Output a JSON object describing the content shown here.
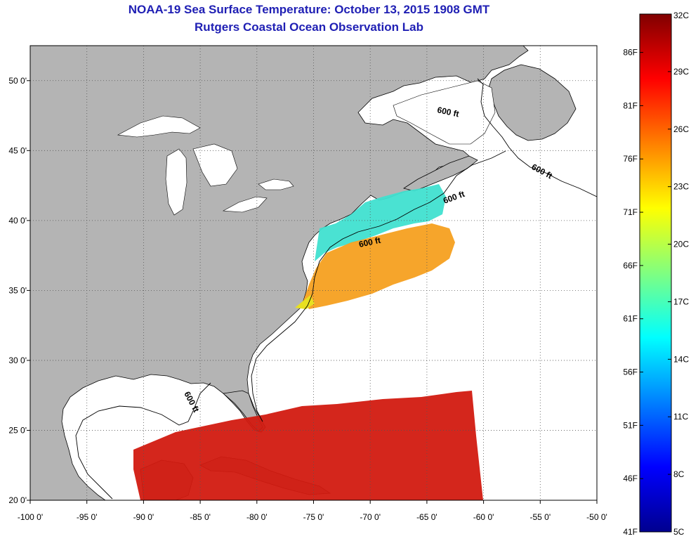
{
  "header": {
    "title": "NOAA-19 Sea Surface Temperature:  October 13, 2015 1908 GMT",
    "subtitle": "Rutgers Coastal Ocean Observation Lab"
  },
  "map": {
    "lon_range": [
      -100,
      -50
    ],
    "lat_range": [
      20,
      52.5
    ],
    "lon_ticks": [
      {
        "v": -100,
        "label": "-100 0'"
      },
      {
        "v": -95,
        "label": "-95 0'"
      },
      {
        "v": -90,
        "label": "-90 0'"
      },
      {
        "v": -85,
        "label": "-85 0'"
      },
      {
        "v": -80,
        "label": "-80 0'"
      },
      {
        "v": -75,
        "label": "-75 0'"
      },
      {
        "v": -70,
        "label": "-70 0'"
      },
      {
        "v": -65,
        "label": "-65 0'"
      },
      {
        "v": -60,
        "label": "-60 0'"
      },
      {
        "v": -55,
        "label": "-55 0'"
      },
      {
        "v": -50,
        "label": "-50 0'"
      }
    ],
    "lat_ticks": [
      {
        "v": 20,
        "label": "20 0'"
      },
      {
        "v": 25,
        "label": "25 0'"
      },
      {
        "v": 30,
        "label": "30 0'"
      },
      {
        "v": 35,
        "label": "35 0'"
      },
      {
        "v": 40,
        "label": "40 0'"
      },
      {
        "v": 45,
        "label": "45 0'"
      },
      {
        "v": 50,
        "label": "50 0'"
      }
    ],
    "contour_label": "600 ft",
    "colors": {
      "land": "#b4b4b4",
      "ocean": "#ffffff",
      "grid": "#555555"
    }
  },
  "colorbar": {
    "min_c": 5,
    "max_c": 32,
    "celsius_ticks": [
      {
        "v": 32,
        "label": "32C"
      },
      {
        "v": 29,
        "label": "29C"
      },
      {
        "v": 26,
        "label": "26C"
      },
      {
        "v": 23,
        "label": "23C"
      },
      {
        "v": 20,
        "label": "20C"
      },
      {
        "v": 17,
        "label": "17C"
      },
      {
        "v": 14,
        "label": "14C"
      },
      {
        "v": 11,
        "label": "11C"
      },
      {
        "v": 8,
        "label": "8C"
      },
      {
        "v": 5,
        "label": "5C"
      }
    ],
    "fahrenheit_ticks": [
      {
        "v": 86,
        "label": "86F"
      },
      {
        "v": 81,
        "label": "81F"
      },
      {
        "v": 76,
        "label": "76F"
      },
      {
        "v": 71,
        "label": "71F"
      },
      {
        "v": 66,
        "label": "66F"
      },
      {
        "v": 61,
        "label": "61F"
      },
      {
        "v": 56,
        "label": "56F"
      },
      {
        "v": 51,
        "label": "51F"
      },
      {
        "v": 46,
        "label": "46F"
      },
      {
        "v": 41,
        "label": "41F"
      }
    ]
  }
}
